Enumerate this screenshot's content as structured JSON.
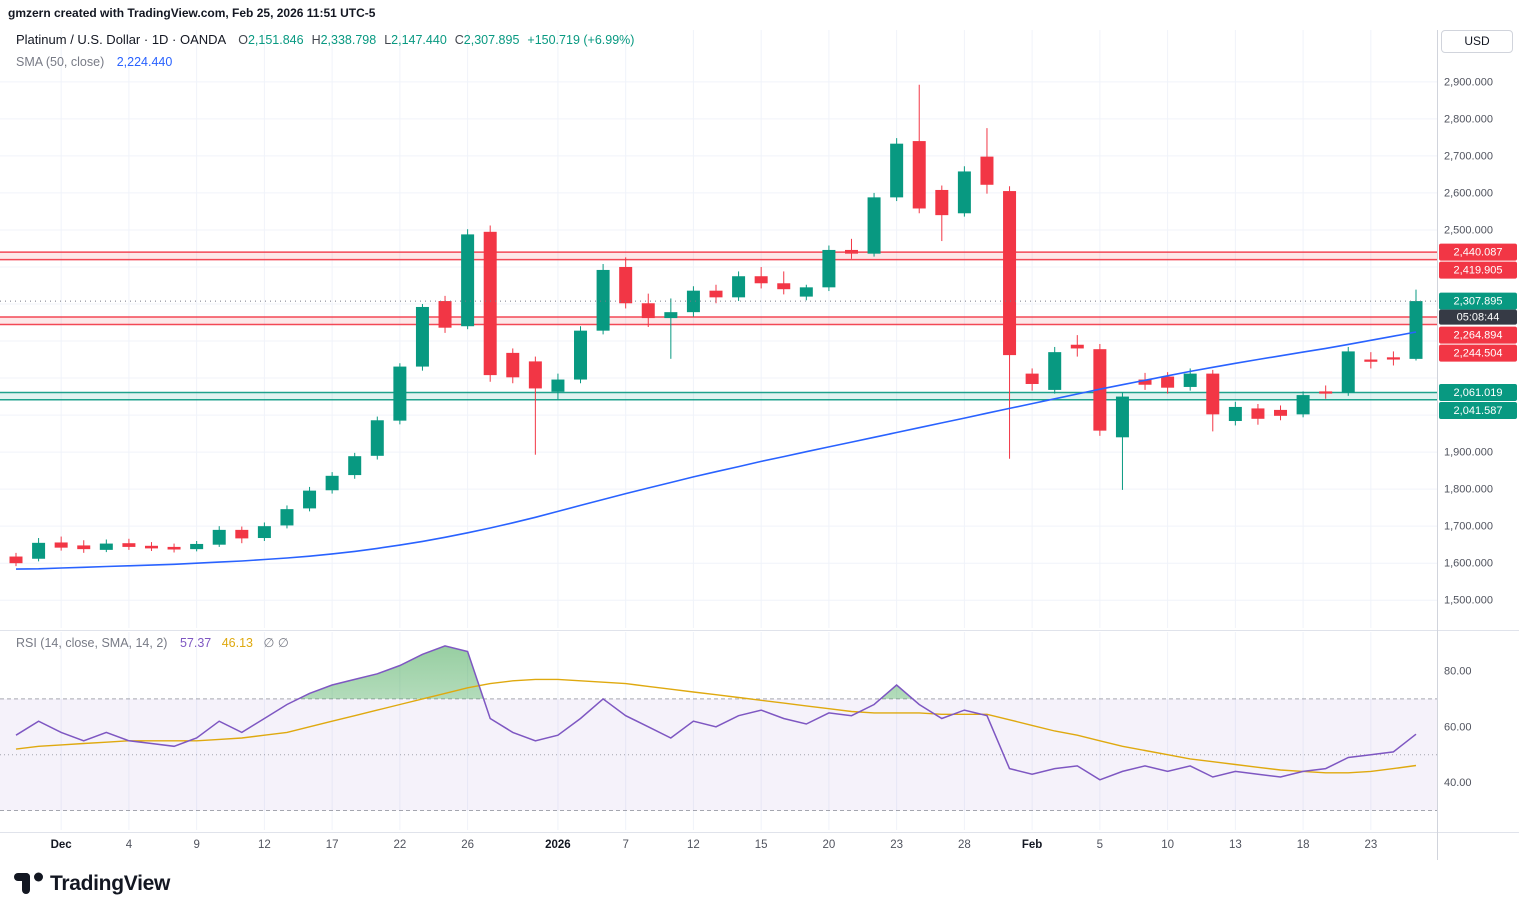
{
  "attribution": "gmzern created with TradingView.com, Feb 25, 2026 11:51 UTC-5",
  "logo": {
    "text": "TradingView"
  },
  "price_pane": {
    "legend": {
      "title": "Platinum / U.S. Dollar · 1D · OANDA",
      "o_label": "O",
      "o": "2,151.846",
      "h_label": "H",
      "h": "2,338.798",
      "l_label": "L",
      "l": "2,147.440",
      "c_label": "C",
      "c": "2,307.895",
      "change": "+150.719 (+6.99%)",
      "sma_label": "SMA (50, close)",
      "sma_value": "2,224.440"
    },
    "axis": {
      "currency": "USD"
    }
  },
  "rsi_pane": {
    "legend": {
      "label": "RSI (14, close, SMA, 14, 2)",
      "rsi_value": "57.37",
      "ma_value": "46.13",
      "nulls": "∅ ∅"
    }
  },
  "time_axis": {
    "labels": [
      {
        "t": "Dec",
        "i": 2,
        "b": true
      },
      {
        "t": "4",
        "i": 5
      },
      {
        "t": "9",
        "i": 8
      },
      {
        "t": "12",
        "i": 11
      },
      {
        "t": "17",
        "i": 14
      },
      {
        "t": "22",
        "i": 17
      },
      {
        "t": "26",
        "i": 20
      },
      {
        "t": "2026",
        "i": 24,
        "b": true
      },
      {
        "t": "7",
        "i": 27
      },
      {
        "t": "12",
        "i": 30
      },
      {
        "t": "15",
        "i": 33
      },
      {
        "t": "20",
        "i": 36
      },
      {
        "t": "23",
        "i": 39
      },
      {
        "t": "28",
        "i": 42
      },
      {
        "t": "Feb",
        "i": 45,
        "b": true
      },
      {
        "t": "5",
        "i": 48
      },
      {
        "t": "10",
        "i": 51
      },
      {
        "t": "13",
        "i": 54
      },
      {
        "t": "18",
        "i": 57
      },
      {
        "t": "23",
        "i": 60
      }
    ]
  },
  "colors": {
    "up": "#089981",
    "down": "#f23645",
    "sma": "#2962ff",
    "rsi": "#7e57c2",
    "rsi_ma": "#dfa90f",
    "grid": "#f0f3fa",
    "border": "#e0e3eb",
    "axis_text": "#50535e",
    "text": "#131722",
    "muted": "#787b86",
    "countdown_bg": "#363a45",
    "rsi_band": "rgba(126,87,194,0.08)",
    "ob_fill": "#2f9e44"
  },
  "chart_data": [
    {
      "type": "candlestick",
      "title": "Platinum / U.S. Dollar",
      "interval": "1D",
      "exchange": "OANDA",
      "ylim": [
        1425,
        3040
      ],
      "yticks": [
        1500,
        1600,
        1700,
        1800,
        1900,
        2000,
        2100,
        2200,
        2300,
        2400,
        2500,
        2600,
        2700,
        2800,
        2900
      ],
      "dates": [
        "Nov 27",
        "Nov 28",
        "Dec 1",
        "Dec 2",
        "Dec 3",
        "Dec 4",
        "Dec 5",
        "Dec 8",
        "Dec 9",
        "Dec 10",
        "Dec 11",
        "Dec 12",
        "Dec 15",
        "Dec 16",
        "Dec 17",
        "Dec 18",
        "Dec 19",
        "Dec 22",
        "Dec 23",
        "Dec 24",
        "Dec 26",
        "Dec 29",
        "Dec 30",
        "Dec 31",
        "Jan 2",
        "Jan 5",
        "Jan 6",
        "Jan 7",
        "Jan 8",
        "Jan 9",
        "Jan 12",
        "Jan 13",
        "Jan 14",
        "Jan 15",
        "Jan 16",
        "Jan 19",
        "Jan 20",
        "Jan 21",
        "Jan 22",
        "Jan 23",
        "Jan 26",
        "Jan 27",
        "Jan 28",
        "Jan 29",
        "Jan 30",
        "Feb 2",
        "Feb 3",
        "Feb 4",
        "Feb 5",
        "Feb 6",
        "Feb 9",
        "Feb 10",
        "Feb 11",
        "Feb 12",
        "Feb 13",
        "Feb 16",
        "Feb 17",
        "Feb 18",
        "Feb 19",
        "Feb 20",
        "Feb 23",
        "Feb 24",
        "Feb 25"
      ],
      "ohlc": [
        [
          1618,
          1628,
          1592,
          1600
        ],
        [
          1612,
          1668,
          1605,
          1655
        ],
        [
          1656,
          1672,
          1634,
          1642
        ],
        [
          1648,
          1662,
          1628,
          1638
        ],
        [
          1636,
          1664,
          1630,
          1653
        ],
        [
          1654,
          1666,
          1636,
          1644
        ],
        [
          1647,
          1657,
          1633,
          1640
        ],
        [
          1644,
          1653,
          1629,
          1637
        ],
        [
          1638,
          1660,
          1632,
          1652
        ],
        [
          1650,
          1700,
          1644,
          1690
        ],
        [
          1690,
          1699,
          1654,
          1667
        ],
        [
          1668,
          1710,
          1660,
          1700
        ],
        [
          1702,
          1756,
          1694,
          1746
        ],
        [
          1748,
          1806,
          1740,
          1796
        ],
        [
          1797,
          1846,
          1788,
          1836
        ],
        [
          1838,
          1898,
          1828,
          1889
        ],
        [
          1890,
          1996,
          1880,
          1986
        ],
        [
          1985,
          2140,
          1975,
          2131
        ],
        [
          2131,
          2300,
          2120,
          2292
        ],
        [
          2308,
          2322,
          2222,
          2236
        ],
        [
          2240,
          2502,
          2232,
          2488
        ],
        [
          2495,
          2512,
          2090,
          2108
        ],
        [
          2168,
          2180,
          2086,
          2102
        ],
        [
          2145,
          2158,
          1893,
          2072
        ],
        [
          2063,
          2112,
          2042,
          2096
        ],
        [
          2096,
          2240,
          2086,
          2228
        ],
        [
          2228,
          2408,
          2218,
          2392
        ],
        [
          2400,
          2426,
          2288,
          2302
        ],
        [
          2302,
          2328,
          2238,
          2262
        ],
        [
          2262,
          2315,
          2152,
          2278
        ],
        [
          2278,
          2348,
          2266,
          2336
        ],
        [
          2336,
          2352,
          2302,
          2318
        ],
        [
          2318,
          2388,
          2308,
          2375
        ],
        [
          2375,
          2400,
          2342,
          2356
        ],
        [
          2356,
          2388,
          2326,
          2340
        ],
        [
          2320,
          2352,
          2310,
          2345
        ],
        [
          2345,
          2458,
          2335,
          2446
        ],
        [
          2446,
          2476,
          2422,
          2436
        ],
        [
          2436,
          2600,
          2428,
          2588
        ],
        [
          2588,
          2748,
          2578,
          2733
        ],
        [
          2740,
          2892,
          2545,
          2558
        ],
        [
          2608,
          2620,
          2470,
          2540
        ],
        [
          2545,
          2672,
          2536,
          2658
        ],
        [
          2698,
          2775,
          2598,
          2622
        ],
        [
          2605,
          2618,
          1882,
          2162
        ],
        [
          2112,
          2126,
          2066,
          2084
        ],
        [
          2068,
          2184,
          2058,
          2170
        ],
        [
          2190,
          2216,
          2158,
          2180
        ],
        [
          2178,
          2192,
          1944,
          1958
        ],
        [
          1940,
          2062,
          1798,
          2050
        ],
        [
          2096,
          2114,
          2068,
          2082
        ],
        [
          2104,
          2116,
          2058,
          2074
        ],
        [
          2076,
          2126,
          2066,
          2112
        ],
        [
          2112,
          2122,
          1956,
          2002
        ],
        [
          1984,
          2036,
          1972,
          2022
        ],
        [
          2018,
          2030,
          1974,
          1990
        ],
        [
          2014,
          2026,
          1986,
          1998
        ],
        [
          2002,
          2064,
          1994,
          2054
        ],
        [
          2064,
          2080,
          2044,
          2058
        ],
        [
          2060,
          2184,
          2052,
          2172
        ],
        [
          2150,
          2170,
          2126,
          2144
        ],
        [
          2156,
          2172,
          2134,
          2150
        ],
        [
          2151.846,
          2338.798,
          2147.44,
          2307.895
        ]
      ],
      "sma50": [
        1584,
        1585,
        1587,
        1589,
        1591,
        1593,
        1595,
        1597,
        1600,
        1603,
        1606,
        1610,
        1614,
        1619,
        1625,
        1632,
        1640,
        1649,
        1659,
        1670,
        1682,
        1695,
        1709,
        1724,
        1740,
        1756,
        1772,
        1788,
        1803,
        1818,
        1833,
        1847,
        1861,
        1875,
        1888,
        1901,
        1914,
        1927,
        1940,
        1953,
        1966,
        1979,
        1992,
        2005,
        2018,
        2031,
        2044,
        2057,
        2070,
        2082,
        2094,
        2106,
        2118,
        2129,
        2140,
        2150,
        2160,
        2170,
        2180,
        2191,
        2202,
        2213,
        2224.44
      ],
      "price_lines": [
        {
          "value": 2440.087,
          "label": "2,440.087",
          "color": "#f23645"
        },
        {
          "value": 2419.905,
          "label": "2,419.905",
          "color": "#f23645"
        },
        {
          "value": 2264.894,
          "label": "2,264.894",
          "color": "#f23645"
        },
        {
          "value": 2244.504,
          "label": "2,244.504",
          "color": "#f23645"
        },
        {
          "value": 2061.019,
          "label": "2,061.019",
          "color": "#089981"
        },
        {
          "value": 2041.587,
          "label": "2,041.587",
          "color": "#089981"
        }
      ],
      "bands": [
        {
          "from": 2419.905,
          "to": 2440.087,
          "color": "#f23645"
        },
        {
          "from": 2244.504,
          "to": 2264.894,
          "color": "#f23645"
        },
        {
          "from": 2041.587,
          "to": 2061.019,
          "color": "#089981"
        }
      ],
      "last_price": {
        "value": 2307.895,
        "label": "2,307.895",
        "countdown": "05:08:44",
        "color": "#089981"
      }
    },
    {
      "type": "line",
      "title": "RSI (14, close, SMA, 14, 2)",
      "ylim": [
        23,
        94
      ],
      "yticks": [
        40,
        60,
        80
      ],
      "guides": {
        "upper": 70,
        "middle": 50,
        "lower": 30
      },
      "series": [
        {
          "name": "RSI",
          "color": "#7e57c2",
          "values": [
            57,
            62,
            58,
            55,
            58,
            55,
            54,
            53,
            56,
            62,
            58,
            63,
            68,
            72,
            75,
            77,
            79,
            82,
            86,
            89,
            87,
            63,
            58,
            55,
            57,
            63,
            70,
            64,
            60,
            56,
            62,
            60,
            64,
            66,
            63,
            61,
            65,
            64,
            68,
            75,
            68,
            63,
            66,
            64,
            45,
            43,
            45,
            46,
            41,
            44,
            46,
            44,
            46,
            42,
            44,
            43,
            42,
            44,
            45,
            49,
            50,
            51,
            57.37
          ]
        },
        {
          "name": "RSI-based MA",
          "color": "#dfa90f",
          "values": [
            52,
            53,
            53.5,
            54,
            54.5,
            55,
            55,
            55,
            55,
            55.5,
            56,
            57,
            58,
            60,
            62,
            64,
            66,
            68,
            70,
            72,
            74,
            75.5,
            76.5,
            77,
            77,
            76.5,
            76,
            75.5,
            74.5,
            73.5,
            72.5,
            71.5,
            70.5,
            69.5,
            68.5,
            67.5,
            66.5,
            65.5,
            65,
            65,
            65,
            64.5,
            64.5,
            64.5,
            62.5,
            60.5,
            58.5,
            57,
            55,
            53,
            51.5,
            50,
            48.5,
            47.5,
            46.5,
            45.5,
            44.5,
            44,
            43.5,
            43.5,
            44,
            45,
            46.13
          ]
        }
      ]
    }
  ]
}
